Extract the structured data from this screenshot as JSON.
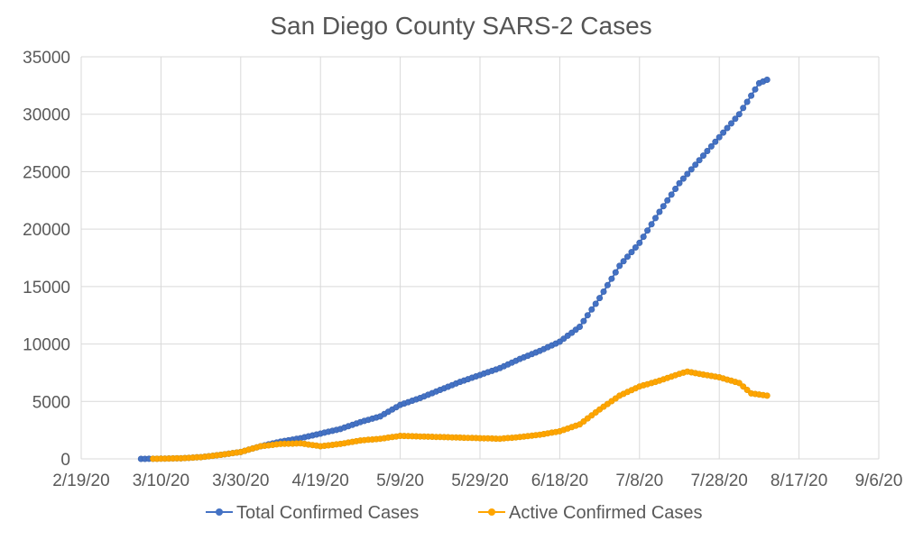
{
  "chart_data": {
    "type": "line",
    "title": "San Diego County SARS-2 Cases",
    "xlabel": "",
    "ylabel": "",
    "x_range": [
      "2020-02-19",
      "2020-09-06"
    ],
    "x_ticks": [
      "2/19/20",
      "3/10/20",
      "3/30/20",
      "4/19/20",
      "5/9/20",
      "5/29/20",
      "6/18/20",
      "7/8/20",
      "7/28/20",
      "8/17/20",
      "9/6/20"
    ],
    "ylim": [
      0,
      35000
    ],
    "y_ticks": [
      "0",
      "5000",
      "10000",
      "15000",
      "20000",
      "25000",
      "30000",
      "35000"
    ],
    "grid": true,
    "legend_position": "bottom",
    "series": [
      {
        "name": "Total Confirmed Cases",
        "color": "#4472C4",
        "points": [
          [
            "2020-03-05",
            2
          ],
          [
            "2020-03-08",
            5
          ],
          [
            "2020-03-15",
            50
          ],
          [
            "2020-03-20",
            150
          ],
          [
            "2020-03-25",
            350
          ],
          [
            "2020-03-30",
            600
          ],
          [
            "2020-04-04",
            1100
          ],
          [
            "2020-04-09",
            1500
          ],
          [
            "2020-04-14",
            1800
          ],
          [
            "2020-04-19",
            2200
          ],
          [
            "2020-04-24",
            2600
          ],
          [
            "2020-04-29",
            3200
          ],
          [
            "2020-05-04",
            3700
          ],
          [
            "2020-05-09",
            4700
          ],
          [
            "2020-05-14",
            5300
          ],
          [
            "2020-05-19",
            6000
          ],
          [
            "2020-05-24",
            6700
          ],
          [
            "2020-05-29",
            7300
          ],
          [
            "2020-06-03",
            7900
          ],
          [
            "2020-06-08",
            8700
          ],
          [
            "2020-06-13",
            9400
          ],
          [
            "2020-06-18",
            10200
          ],
          [
            "2020-06-23",
            11500
          ],
          [
            "2020-06-28",
            14000
          ],
          [
            "2020-07-03",
            16800
          ],
          [
            "2020-07-08",
            18800
          ],
          [
            "2020-07-13",
            21500
          ],
          [
            "2020-07-18",
            24000
          ],
          [
            "2020-07-23",
            26000
          ],
          [
            "2020-07-28",
            28000
          ],
          [
            "2020-08-02",
            30000
          ],
          [
            "2020-08-07",
            32700
          ],
          [
            "2020-08-09",
            33000
          ]
        ]
      },
      {
        "name": "Active Confirmed Cases",
        "color": "#FFA500",
        "points": [
          [
            "2020-03-08",
            5
          ],
          [
            "2020-03-15",
            50
          ],
          [
            "2020-03-20",
            150
          ],
          [
            "2020-03-25",
            350
          ],
          [
            "2020-03-30",
            600
          ],
          [
            "2020-04-04",
            1100
          ],
          [
            "2020-04-09",
            1300
          ],
          [
            "2020-04-14",
            1350
          ],
          [
            "2020-04-19",
            1100
          ],
          [
            "2020-04-24",
            1300
          ],
          [
            "2020-04-29",
            1600
          ],
          [
            "2020-05-04",
            1750
          ],
          [
            "2020-05-09",
            2000
          ],
          [
            "2020-05-14",
            1950
          ],
          [
            "2020-05-19",
            1900
          ],
          [
            "2020-05-24",
            1850
          ],
          [
            "2020-05-29",
            1800
          ],
          [
            "2020-06-03",
            1750
          ],
          [
            "2020-06-08",
            1900
          ],
          [
            "2020-06-13",
            2100
          ],
          [
            "2020-06-18",
            2400
          ],
          [
            "2020-06-23",
            3000
          ],
          [
            "2020-06-28",
            4300
          ],
          [
            "2020-07-03",
            5500
          ],
          [
            "2020-07-08",
            6300
          ],
          [
            "2020-07-13",
            6800
          ],
          [
            "2020-07-18",
            7400
          ],
          [
            "2020-07-20",
            7600
          ],
          [
            "2020-07-23",
            7400
          ],
          [
            "2020-07-28",
            7100
          ],
          [
            "2020-08-02",
            6600
          ],
          [
            "2020-08-05",
            5700
          ],
          [
            "2020-08-09",
            5500
          ]
        ]
      }
    ]
  }
}
